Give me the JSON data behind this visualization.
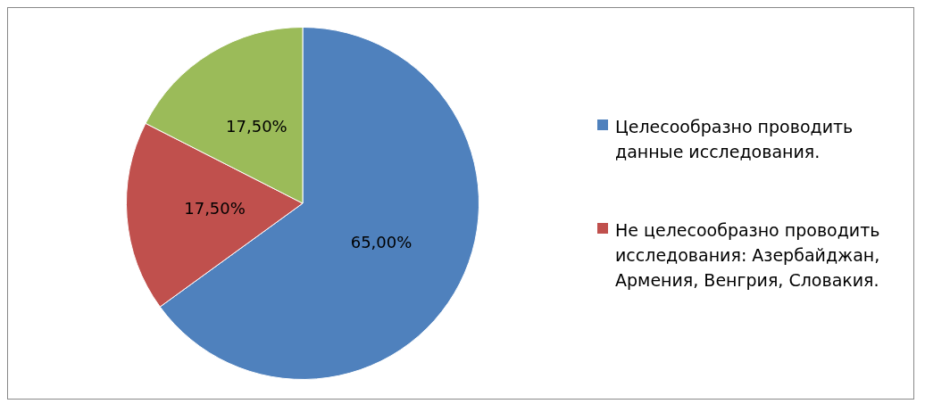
{
  "chart_data": {
    "type": "pie",
    "categories": [
      "Целесообразно проводить данные исследования.",
      "Не целесообразно проводить исследования: Азербайджан, Армения, Венгрия, Словакия.",
      null
    ],
    "values": [
      65,
      17.5,
      17.5
    ],
    "colors": [
      "#4f81bd",
      "#c0504d",
      "#9bbb59"
    ],
    "value_labels": [
      "65,00%",
      "17,50%",
      "17,50%"
    ],
    "legend": "right"
  }
}
